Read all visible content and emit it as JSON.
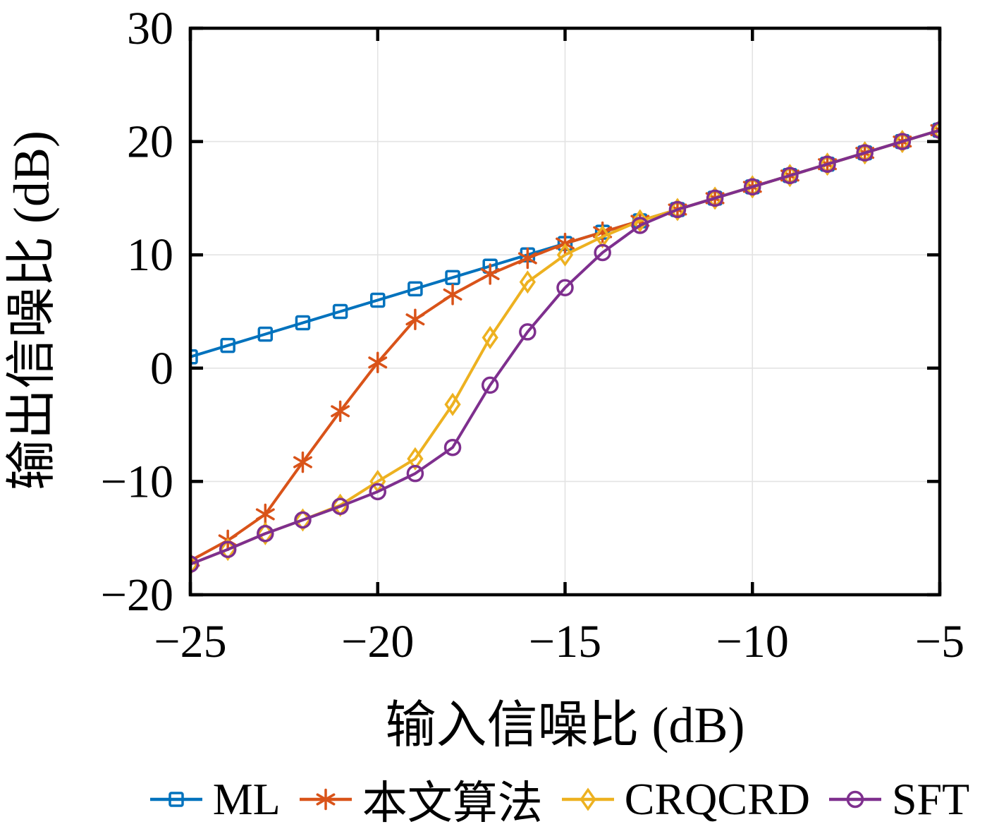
{
  "figure": {
    "background": "#ffffff",
    "text_color": "#000000",
    "grid_color": "#e3e3e3",
    "axis_color": "#000000"
  },
  "chart_data": {
    "type": "line",
    "title": "",
    "xlabel": "输入信噪比 (dB)",
    "ylabel": "输出信噪比 (dB)",
    "xlim": [
      -25,
      -5
    ],
    "ylim": [
      -20,
      30
    ],
    "grid": true,
    "legend_position": "bottom",
    "x": [
      -25,
      -24,
      -23,
      -22,
      -21,
      -20,
      -19,
      -18,
      -17,
      -16,
      -15,
      -14,
      -13,
      -12,
      -11,
      -10,
      -9,
      -8,
      -7,
      -6,
      -5
    ],
    "x_ticks": [
      {
        "value": -25,
        "label": "−25"
      },
      {
        "value": -20,
        "label": "−20"
      },
      {
        "value": -15,
        "label": "−15"
      },
      {
        "value": -10,
        "label": "−10"
      },
      {
        "value": -5,
        "label": "−5"
      }
    ],
    "y_ticks": [
      {
        "value": 30,
        "label": "30"
      },
      {
        "value": 20,
        "label": "20"
      },
      {
        "value": 10,
        "label": "10"
      },
      {
        "value": 0,
        "label": "0"
      },
      {
        "value": -10,
        "label": "−10"
      },
      {
        "value": -20,
        "label": "−20"
      }
    ],
    "series": [
      {
        "id": "ml",
        "name": "ML",
        "color": "#0072BD",
        "marker": "square",
        "values": [
          1,
          2,
          3,
          4,
          5,
          6,
          7,
          8,
          9,
          10,
          11,
          12,
          13,
          14,
          15,
          16,
          17,
          18,
          19,
          20,
          21
        ]
      },
      {
        "id": "proposed",
        "name": "本文算法",
        "color": "#D95319",
        "marker": "asterisk",
        "values": [
          -17.0,
          -15.2,
          -12.9,
          -8.3,
          -3.8,
          0.5,
          4.3,
          6.5,
          8.3,
          9.7,
          11.0,
          12.0,
          13.0,
          14.0,
          15.0,
          16.0,
          17.0,
          18.0,
          19.0,
          20.0,
          21.0
        ]
      },
      {
        "id": "crqcrd",
        "name": "CRQCRD",
        "color": "#EDB120",
        "marker": "diamond",
        "values": [
          -17.3,
          -16.0,
          -14.6,
          -13.4,
          -12.1,
          -10.0,
          -8.0,
          -3.2,
          2.7,
          7.6,
          10.0,
          11.6,
          13.0,
          14.0,
          15.0,
          16.0,
          17.0,
          18.0,
          19.0,
          20.0,
          21.0
        ]
      },
      {
        "id": "sft",
        "name": "SFT",
        "color": "#7E2F8E",
        "marker": "circle",
        "values": [
          -17.3,
          -16.0,
          -14.6,
          -13.4,
          -12.2,
          -10.9,
          -9.3,
          -7.0,
          -1.5,
          3.2,
          7.1,
          10.2,
          12.6,
          14.0,
          15.0,
          16.0,
          17.0,
          18.0,
          19.0,
          20.0,
          21.0
        ]
      }
    ]
  }
}
